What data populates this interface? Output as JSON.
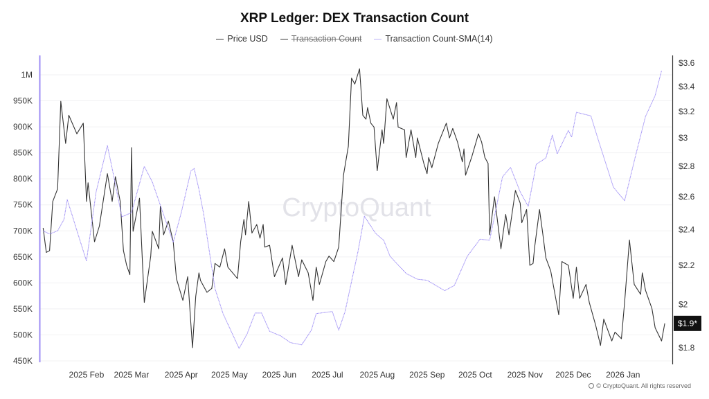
{
  "chart_data": {
    "type": "line",
    "title": "XRP Ledger: DEX Transaction Count",
    "legend": [
      {
        "name": "Price USD",
        "color": "#333333",
        "visible": true
      },
      {
        "name": "Transaction Count",
        "color": "#333333",
        "visible": false
      },
      {
        "name": "Transaction Count-SMA(14)",
        "color": "#9c8cf5",
        "visible": true
      }
    ],
    "legend_placement": "top-center",
    "grid": true,
    "x_ticks": [
      "2025 Feb",
      "2025 Mar",
      "2025 Apr",
      "2025 May",
      "2025 Jun",
      "2025 Jul",
      "2025 Aug",
      "2025 Sep",
      "2025 Oct",
      "2025 Nov",
      "2025 Dec",
      "2026 Jan"
    ],
    "y_left": {
      "ticks": [
        "1M",
        "950K",
        "900K",
        "850K",
        "800K",
        "750K",
        "700K",
        "650K",
        "600K",
        "550K",
        "500K",
        "450K"
      ],
      "range": [
        450000,
        1000000
      ],
      "scale": "linear"
    },
    "y_right": {
      "ticks": [
        "$3.6",
        "$3.4",
        "$3.2",
        "$3",
        "$2.8",
        "$2.6",
        "$2.4",
        "$2.2",
        "$2",
        "$1.8"
      ],
      "range": [
        1.8,
        3.6
      ],
      "scale": "log"
    },
    "last_price_label": "$1.9*",
    "series": [
      {
        "name": "Price USD",
        "axis": "right",
        "color": "#333333",
        "points": [
          [
            "2025-01-05",
            2.41
          ],
          [
            "2025-01-07",
            2.27
          ],
          [
            "2025-01-09",
            2.28
          ],
          [
            "2025-01-11",
            2.57
          ],
          [
            "2025-01-14",
            2.65
          ],
          [
            "2025-01-16",
            3.28
          ],
          [
            "2025-01-19",
            2.96
          ],
          [
            "2025-01-21",
            3.17
          ],
          [
            "2025-01-26",
            3.03
          ],
          [
            "2025-01-30",
            3.11
          ],
          [
            "2025-02-01",
            2.57
          ],
          [
            "2025-02-02",
            2.69
          ],
          [
            "2025-02-06",
            2.33
          ],
          [
            "2025-02-09",
            2.42
          ],
          [
            "2025-02-14",
            2.75
          ],
          [
            "2025-02-17",
            2.57
          ],
          [
            "2025-02-19",
            2.73
          ],
          [
            "2025-02-22",
            2.57
          ],
          [
            "2025-02-24",
            2.28
          ],
          [
            "2025-02-26",
            2.2
          ],
          [
            "2025-02-28",
            2.15
          ],
          [
            "2025-03-01",
            2.93
          ],
          [
            "2025-03-02",
            2.39
          ],
          [
            "2025-03-06",
            2.59
          ],
          [
            "2025-03-09",
            2.01
          ],
          [
            "2025-03-13",
            2.25
          ],
          [
            "2025-03-14",
            2.39
          ],
          [
            "2025-03-18",
            2.29
          ],
          [
            "2025-03-19",
            2.54
          ],
          [
            "2025-03-21",
            2.37
          ],
          [
            "2025-03-24",
            2.45
          ],
          [
            "2025-03-27",
            2.33
          ],
          [
            "2025-03-29",
            2.13
          ],
          [
            "2025-04-02",
            2.02
          ],
          [
            "2025-04-05",
            2.14
          ],
          [
            "2025-04-08",
            1.8
          ],
          [
            "2025-04-10",
            2.04
          ],
          [
            "2025-04-12",
            2.16
          ],
          [
            "2025-04-13",
            2.12
          ],
          [
            "2025-04-17",
            2.06
          ],
          [
            "2025-04-20",
            2.08
          ],
          [
            "2025-04-22",
            2.21
          ],
          [
            "2025-04-25",
            2.19
          ],
          [
            "2025-04-28",
            2.29
          ],
          [
            "2025-04-30",
            2.19
          ],
          [
            "2025-05-06",
            2.13
          ],
          [
            "2025-05-08",
            2.33
          ],
          [
            "2025-05-10",
            2.46
          ],
          [
            "2025-05-11",
            2.37
          ],
          [
            "2025-05-13",
            2.57
          ],
          [
            "2025-05-15",
            2.38
          ],
          [
            "2025-05-18",
            2.43
          ],
          [
            "2025-05-20",
            2.35
          ],
          [
            "2025-05-22",
            2.43
          ],
          [
            "2025-05-23",
            2.3
          ],
          [
            "2025-05-26",
            2.31
          ],
          [
            "2025-05-29",
            2.14
          ],
          [
            "2025-06-03",
            2.24
          ],
          [
            "2025-06-05",
            2.1
          ],
          [
            "2025-06-09",
            2.31
          ],
          [
            "2025-06-13",
            2.14
          ],
          [
            "2025-06-15",
            2.23
          ],
          [
            "2025-06-19",
            2.16
          ],
          [
            "2025-06-22",
            2.02
          ],
          [
            "2025-06-24",
            2.19
          ],
          [
            "2025-06-26",
            2.1
          ],
          [
            "2025-06-30",
            2.22
          ],
          [
            "2025-07-02",
            2.25
          ],
          [
            "2025-07-05",
            2.22
          ],
          [
            "2025-07-08",
            2.3
          ],
          [
            "2025-07-11",
            2.74
          ],
          [
            "2025-07-14",
            2.94
          ],
          [
            "2025-07-16",
            3.47
          ],
          [
            "2025-07-18",
            3.42
          ],
          [
            "2025-07-21",
            3.55
          ],
          [
            "2025-07-23",
            3.17
          ],
          [
            "2025-07-25",
            3.14
          ],
          [
            "2025-07-26",
            3.23
          ],
          [
            "2025-07-28",
            3.11
          ],
          [
            "2025-07-30",
            3.08
          ],
          [
            "2025-08-01",
            2.77
          ],
          [
            "2025-08-04",
            3.06
          ],
          [
            "2025-08-05",
            2.96
          ],
          [
            "2025-08-07",
            3.3
          ],
          [
            "2025-08-11",
            3.14
          ],
          [
            "2025-08-13",
            3.27
          ],
          [
            "2025-08-14",
            3.08
          ],
          [
            "2025-08-18",
            3.06
          ],
          [
            "2025-08-19",
            2.86
          ],
          [
            "2025-08-22",
            3.06
          ],
          [
            "2025-08-25",
            2.86
          ],
          [
            "2025-08-26",
            3.0
          ],
          [
            "2025-08-30",
            2.82
          ],
          [
            "2025-09-01",
            2.75
          ],
          [
            "2025-09-02",
            2.86
          ],
          [
            "2025-09-04",
            2.79
          ],
          [
            "2025-09-08",
            2.96
          ],
          [
            "2025-09-13",
            3.11
          ],
          [
            "2025-09-15",
            3.0
          ],
          [
            "2025-09-17",
            3.07
          ],
          [
            "2025-09-20",
            2.97
          ],
          [
            "2025-09-23",
            2.83
          ],
          [
            "2025-09-24",
            2.92
          ],
          [
            "2025-09-25",
            2.74
          ],
          [
            "2025-09-29",
            2.87
          ],
          [
            "2025-10-03",
            3.03
          ],
          [
            "2025-10-05",
            2.97
          ],
          [
            "2025-10-07",
            2.86
          ],
          [
            "2025-10-09",
            2.82
          ],
          [
            "2025-10-10",
            2.37
          ],
          [
            "2025-10-13",
            2.6
          ],
          [
            "2025-10-17",
            2.29
          ],
          [
            "2025-10-20",
            2.49
          ],
          [
            "2025-10-22",
            2.37
          ],
          [
            "2025-10-26",
            2.64
          ],
          [
            "2025-10-29",
            2.56
          ],
          [
            "2025-10-30",
            2.44
          ],
          [
            "2025-11-02",
            2.52
          ],
          [
            "2025-11-04",
            2.2
          ],
          [
            "2025-11-06",
            2.21
          ],
          [
            "2025-11-07",
            2.3
          ],
          [
            "2025-11-10",
            2.52
          ],
          [
            "2025-11-12",
            2.38
          ],
          [
            "2025-11-14",
            2.24
          ],
          [
            "2025-11-17",
            2.17
          ],
          [
            "2025-11-22",
            1.95
          ],
          [
            "2025-11-24",
            2.22
          ],
          [
            "2025-11-28",
            2.2
          ],
          [
            "2025-12-01",
            2.03
          ],
          [
            "2025-12-03",
            2.19
          ],
          [
            "2025-12-05",
            2.03
          ],
          [
            "2025-12-09",
            2.1
          ],
          [
            "2025-12-11",
            2.01
          ],
          [
            "2025-12-15",
            1.9
          ],
          [
            "2025-12-18",
            1.81
          ],
          [
            "2025-12-20",
            1.93
          ],
          [
            "2025-12-25",
            1.83
          ],
          [
            "2025-12-27",
            1.87
          ],
          [
            "2025-12-31",
            1.84
          ],
          [
            "2026-01-02",
            2.01
          ],
          [
            "2026-01-05",
            2.34
          ],
          [
            "2026-01-08",
            2.1
          ],
          [
            "2026-01-12",
            2.05
          ],
          [
            "2026-01-13",
            2.16
          ],
          [
            "2026-01-15",
            2.07
          ],
          [
            "2026-01-19",
            1.98
          ],
          [
            "2026-01-21",
            1.89
          ],
          [
            "2026-01-25",
            1.83
          ],
          [
            "2026-01-27",
            1.91
          ]
        ]
      },
      {
        "name": "Transaction Count-SMA(14)",
        "axis": "left",
        "color": "#9c8cf5",
        "points": [
          [
            "2025-01-05",
            700000
          ],
          [
            "2025-01-09",
            694000
          ],
          [
            "2025-01-14",
            700000
          ],
          [
            "2025-01-18",
            722000
          ],
          [
            "2025-01-20",
            760000
          ],
          [
            "2025-01-23",
            731000
          ],
          [
            "2025-01-27",
            691000
          ],
          [
            "2025-02-01",
            642000
          ],
          [
            "2025-02-07",
            775000
          ],
          [
            "2025-02-14",
            864000
          ],
          [
            "2025-02-17",
            820000
          ],
          [
            "2025-02-23",
            727000
          ],
          [
            "2025-03-01",
            735000
          ],
          [
            "2025-03-09",
            824000
          ],
          [
            "2025-03-14",
            794000
          ],
          [
            "2025-03-21",
            731000
          ],
          [
            "2025-03-27",
            678000
          ],
          [
            "2025-04-01",
            735000
          ],
          [
            "2025-04-07",
            815000
          ],
          [
            "2025-04-09",
            820000
          ],
          [
            "2025-04-12",
            780000
          ],
          [
            "2025-04-15",
            731000
          ],
          [
            "2025-04-22",
            589000
          ],
          [
            "2025-04-27",
            541000
          ],
          [
            "2025-05-07",
            474000
          ],
          [
            "2025-05-12",
            502000
          ],
          [
            "2025-05-17",
            542000
          ],
          [
            "2025-05-21",
            542000
          ],
          [
            "2025-05-26",
            507000
          ],
          [
            "2025-06-02",
            498000
          ],
          [
            "2025-06-08",
            485000
          ],
          [
            "2025-06-15",
            481000
          ],
          [
            "2025-06-21",
            509000
          ],
          [
            "2025-06-24",
            541000
          ],
          [
            "2025-07-04",
            545000
          ],
          [
            "2025-07-08",
            509000
          ],
          [
            "2025-07-12",
            545000
          ],
          [
            "2025-07-20",
            660000
          ],
          [
            "2025-07-24",
            728000
          ],
          [
            "2025-07-31",
            695000
          ],
          [
            "2025-08-05",
            682000
          ],
          [
            "2025-08-09",
            651000
          ],
          [
            "2025-08-19",
            618000
          ],
          [
            "2025-08-26",
            607000
          ],
          [
            "2025-09-01",
            605000
          ],
          [
            "2025-09-12",
            585000
          ],
          [
            "2025-09-18",
            595000
          ],
          [
            "2025-09-26",
            651000
          ],
          [
            "2025-10-04",
            684000
          ],
          [
            "2025-10-10",
            682000
          ],
          [
            "2025-10-18",
            804000
          ],
          [
            "2025-10-23",
            822000
          ],
          [
            "2025-10-29",
            775000
          ],
          [
            "2025-11-03",
            747000
          ],
          [
            "2025-11-08",
            828000
          ],
          [
            "2025-11-14",
            840000
          ],
          [
            "2025-11-18",
            884000
          ],
          [
            "2025-11-21",
            848000
          ],
          [
            "2025-11-28",
            893000
          ],
          [
            "2025-11-30",
            880000
          ],
          [
            "2025-12-03",
            928000
          ],
          [
            "2025-12-12",
            921000
          ],
          [
            "2025-12-17",
            871000
          ],
          [
            "2025-12-26",
            784000
          ],
          [
            "2026-01-02",
            758000
          ],
          [
            "2026-01-09",
            847000
          ],
          [
            "2026-01-15",
            920000
          ],
          [
            "2026-01-21",
            960000
          ],
          [
            "2026-01-25",
            1008000
          ]
        ]
      }
    ]
  },
  "watermark": "CryptoQuant",
  "footer": "© CryptoQuant. All rights reserved"
}
